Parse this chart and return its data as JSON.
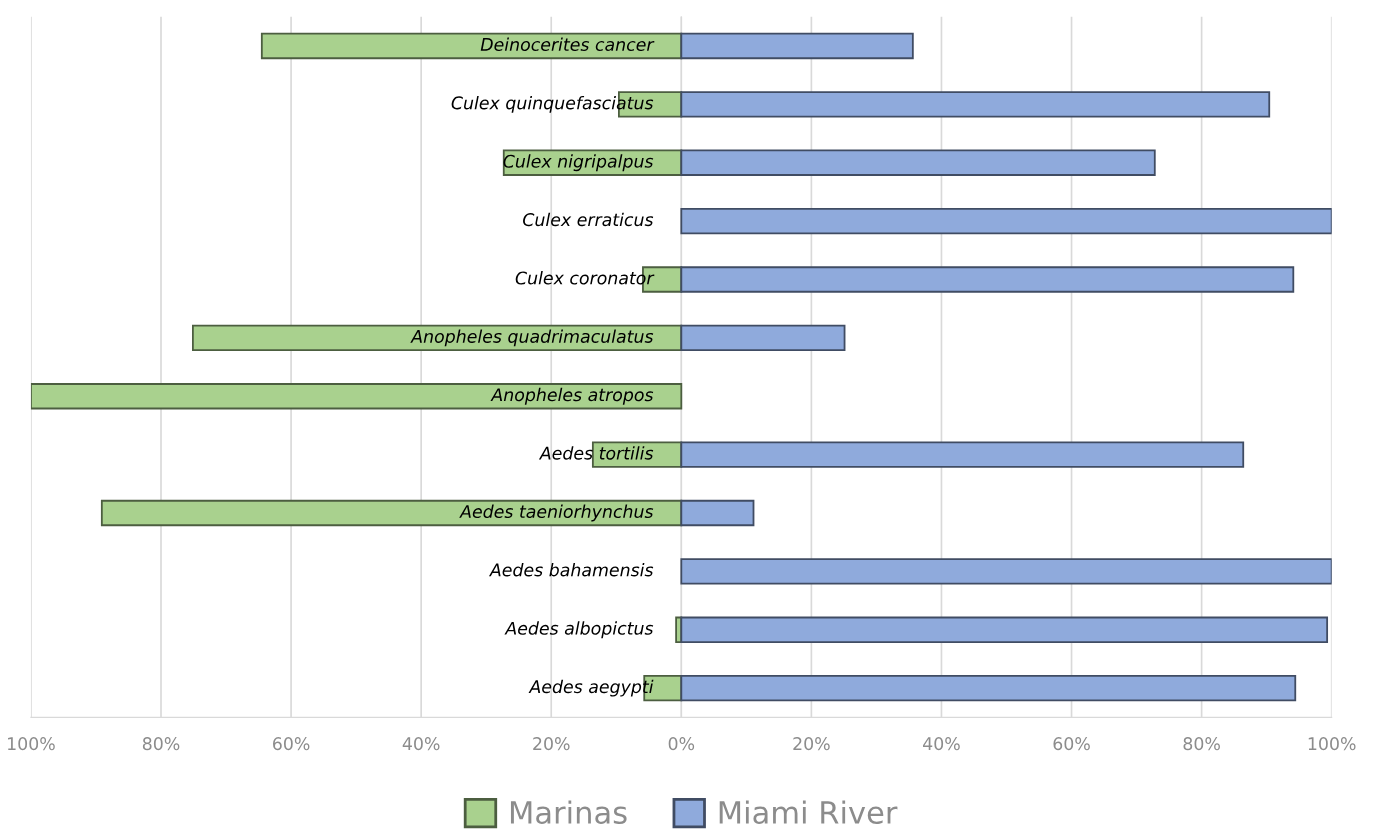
{
  "chart_data": {
    "type": "bar",
    "orientation": "horizontal",
    "stacked": true,
    "categories": [
      "Deinocerites cancer",
      "Culex quinquefasciatus",
      "Culex nigripalpus",
      "Culex erraticus",
      "Culex coronator",
      "Anopheles quadrimaculatus",
      "Anopheles atropos",
      "Aedes tortilis",
      "Aedes taeniorhynchus",
      "Aedes bahamensis",
      "Aedes albopictus",
      "Aedes aegypti"
    ],
    "series": [
      {
        "name": "Marinas",
        "color": "#a9d18e",
        "values": [
          -64.5,
          -9.6,
          -27.3,
          0,
          -5.9,
          -75.1,
          -100,
          -13.6,
          -89.1,
          0,
          -0.8,
          -5.7
        ]
      },
      {
        "name": "Miami River",
        "color": "#8faadc",
        "values": [
          35.6,
          90.4,
          72.8,
          100,
          94.1,
          25.1,
          0,
          86.4,
          11.1,
          100,
          99.3,
          94.4
        ]
      }
    ],
    "xlim": [
      -100,
      100
    ],
    "xticks": [
      {
        "value": -100,
        "label": "100%"
      },
      {
        "value": -80,
        "label": "80%"
      },
      {
        "value": -60,
        "label": "60%"
      },
      {
        "value": -40,
        "label": "40%"
      },
      {
        "value": -20,
        "label": "20%"
      },
      {
        "value": 0,
        "label": "0%"
      },
      {
        "value": 20,
        "label": "20%"
      },
      {
        "value": 40,
        "label": "40%"
      },
      {
        "value": 60,
        "label": "60%"
      },
      {
        "value": 80,
        "label": "80%"
      },
      {
        "value": 100,
        "label": "100%"
      }
    ],
    "grid": "x",
    "legend": "bottom"
  }
}
